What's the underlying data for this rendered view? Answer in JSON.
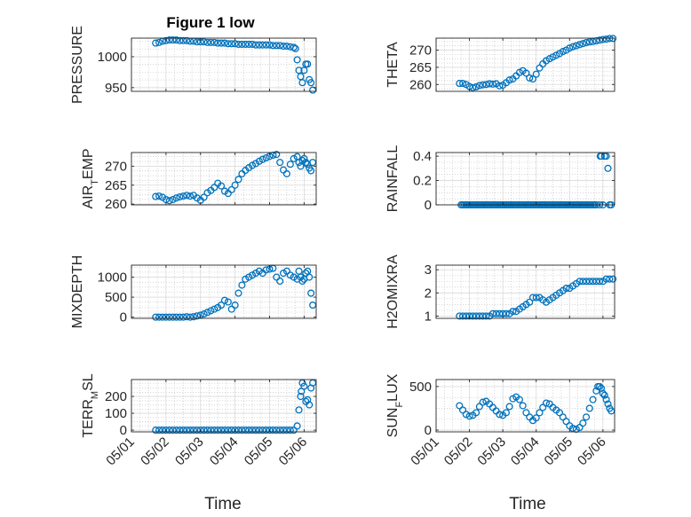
{
  "figure": {
    "title": "Figure 1 low"
  },
  "xaxis": {
    "label": "Time",
    "ticks": [
      "05/01",
      "05/02",
      "05/03",
      "05/04",
      "05/05",
      "05/06"
    ]
  },
  "colors": {
    "marker": "#0072BD",
    "axis": "#262626",
    "grid": "#bcbcbc"
  },
  "chart_data": [
    {
      "type": "scatter",
      "title": "Figure 1 low",
      "ylabel": "PRESSURE",
      "xlim": [
        0,
        5.35
      ],
      "ylim": [
        944,
        1030
      ],
      "yticks": [
        950,
        1000
      ],
      "grid": true,
      "x": [
        0.7,
        0.8,
        0.9,
        1.0,
        1.1,
        1.2,
        1.3,
        1.4,
        1.5,
        1.6,
        1.7,
        1.8,
        1.9,
        2.0,
        2.1,
        2.2,
        2.3,
        2.4,
        2.5,
        2.6,
        2.7,
        2.8,
        2.9,
        3.0,
        3.1,
        3.2,
        3.3,
        3.4,
        3.5,
        3.6,
        3.7,
        3.8,
        3.9,
        4.0,
        4.1,
        4.2,
        4.3,
        4.4,
        4.5,
        4.6,
        4.7,
        4.75,
        4.8,
        4.85,
        4.9,
        4.95,
        5.0,
        5.05,
        5.1,
        5.15,
        5.2,
        5.25
      ],
      "y": [
        1022,
        1023,
        1025,
        1026,
        1027,
        1027,
        1027,
        1026,
        1026,
        1026,
        1025,
        1025,
        1024,
        1024,
        1024,
        1023,
        1023,
        1023,
        1022,
        1022,
        1022,
        1021,
        1021,
        1021,
        1020,
        1020,
        1020,
        1020,
        1020,
        1019,
        1019,
        1019,
        1019,
        1019,
        1018,
        1018,
        1018,
        1017,
        1017,
        1016,
        1015,
        1013,
        995,
        978,
        968,
        958,
        978,
        988,
        988,
        963,
        958,
        946
      ]
    },
    {
      "type": "scatter",
      "ylabel": "THETA",
      "xlim": [
        0,
        5.35
      ],
      "ylim": [
        258,
        273.5
      ],
      "yticks": [
        260,
        265,
        270
      ],
      "grid": true,
      "x": [
        0.7,
        0.8,
        0.9,
        1.0,
        1.1,
        1.2,
        1.3,
        1.4,
        1.5,
        1.6,
        1.7,
        1.8,
        1.9,
        2.0,
        2.1,
        2.2,
        2.3,
        2.4,
        2.5,
        2.6,
        2.7,
        2.8,
        2.9,
        3.0,
        3.1,
        3.2,
        3.3,
        3.4,
        3.5,
        3.6,
        3.7,
        3.8,
        3.9,
        4.0,
        4.1,
        4.2,
        4.3,
        4.4,
        4.5,
        4.6,
        4.7,
        4.8,
        4.9,
        5.0,
        5.1,
        5.2,
        5.3
      ],
      "y": [
        260.3,
        260.3,
        260.0,
        259.4,
        259.1,
        259.3,
        259.7,
        259.9,
        260.0,
        260.2,
        260.1,
        260.2,
        259.6,
        259.8,
        260.5,
        261.3,
        261.6,
        262.5,
        263.5,
        264.0,
        263.3,
        261.9,
        261.6,
        263.0,
        264.8,
        266.0,
        266.9,
        267.5,
        268.0,
        268.5,
        269.0,
        269.6,
        270.0,
        270.6,
        271.0,
        271.3,
        271.6,
        271.9,
        272.2,
        272.4,
        272.5,
        272.7,
        272.9,
        273.1,
        273.2,
        273.4,
        273.4
      ]
    },
    {
      "type": "scatter",
      "ylabel": "AIR_TEMP",
      "xlim": [
        0,
        5.35
      ],
      "ylim": [
        259.8,
        273.6
      ],
      "yticks": [
        260,
        265,
        270
      ],
      "grid": true,
      "x": [
        0.7,
        0.8,
        0.9,
        1.0,
        1.1,
        1.2,
        1.3,
        1.4,
        1.5,
        1.6,
        1.7,
        1.8,
        1.9,
        2.0,
        2.1,
        2.2,
        2.3,
        2.4,
        2.5,
        2.6,
        2.7,
        2.8,
        2.9,
        3.0,
        3.1,
        3.2,
        3.3,
        3.4,
        3.5,
        3.6,
        3.7,
        3.8,
        3.9,
        4.0,
        4.1,
        4.2,
        4.3,
        4.4,
        4.5,
        4.6,
        4.7,
        4.8,
        4.85,
        4.9,
        4.95,
        5.0,
        5.05,
        5.1,
        5.15,
        5.2,
        5.25
      ],
      "y": [
        262.0,
        262.1,
        261.8,
        261.2,
        260.9,
        261.2,
        261.6,
        261.9,
        262.1,
        262.3,
        262.1,
        262.3,
        261.6,
        261.0,
        261.8,
        263.0,
        263.6,
        264.4,
        265.5,
        264.8,
        263.4,
        262.8,
        263.8,
        265.0,
        266.5,
        268.0,
        268.9,
        269.6,
        270.2,
        270.7,
        271.3,
        271.8,
        272.2,
        272.6,
        272.9,
        273.1,
        271.0,
        269.0,
        268.0,
        270.5,
        272.0,
        272.5,
        271.0,
        270.0,
        271.5,
        272.0,
        271.0,
        270.5,
        269.5,
        268.8,
        271.0
      ]
    },
    {
      "type": "scatter",
      "ylabel": "RAINFALL",
      "xlim": [
        0,
        5.35
      ],
      "ylim": [
        0,
        0.43
      ],
      "yticks": [
        0,
        0.2,
        0.4
      ],
      "grid": true,
      "x": [
        0.75,
        0.8,
        0.85,
        0.9,
        0.95,
        1.0,
        1.05,
        1.1,
        1.15,
        1.2,
        1.25,
        1.3,
        1.35,
        1.4,
        1.45,
        1.5,
        1.55,
        1.6,
        1.65,
        1.7,
        1.75,
        1.8,
        1.85,
        1.9,
        1.95,
        2.0,
        2.05,
        2.1,
        2.15,
        2.2,
        2.25,
        2.3,
        2.35,
        2.4,
        2.45,
        2.5,
        2.55,
        2.6,
        2.65,
        2.7,
        2.75,
        2.8,
        2.85,
        2.9,
        2.95,
        3.0,
        3.05,
        3.1,
        3.15,
        3.2,
        3.25,
        3.3,
        3.35,
        3.4,
        3.45,
        3.5,
        3.55,
        3.6,
        3.65,
        3.7,
        3.75,
        3.8,
        3.85,
        3.9,
        3.95,
        4.0,
        4.05,
        4.1,
        4.15,
        4.2,
        4.25,
        4.3,
        4.35,
        4.4,
        4.45,
        4.5,
        4.55,
        4.6,
        4.65,
        4.7,
        4.75,
        4.8,
        4.9,
        4.92,
        4.95,
        5.0,
        5.05,
        5.1,
        5.15,
        5.2,
        5.25
      ],
      "y": [
        0,
        0,
        0,
        0,
        0,
        0,
        0,
        0,
        0,
        0,
        0,
        0,
        0,
        0,
        0,
        0,
        0,
        0,
        0,
        0,
        0,
        0,
        0,
        0,
        0,
        0,
        0,
        0,
        0,
        0,
        0,
        0,
        0,
        0,
        0,
        0,
        0,
        0,
        0,
        0,
        0,
        0,
        0,
        0,
        0,
        0,
        0,
        0,
        0,
        0,
        0,
        0,
        0,
        0,
        0,
        0,
        0,
        0,
        0,
        0,
        0,
        0,
        0,
        0,
        0,
        0,
        0,
        0,
        0,
        0,
        0,
        0,
        0,
        0,
        0,
        0,
        0,
        0,
        0,
        0,
        0,
        0,
        0,
        0.4,
        0.4,
        0,
        0.4,
        0.4,
        0.3,
        0,
        0
      ]
    },
    {
      "type": "scatter",
      "ylabel": "MIXDEPTH",
      "xlim": [
        0,
        5.35
      ],
      "ylim": [
        -30,
        1300
      ],
      "yticks": [
        0,
        500,
        1000
      ],
      "grid": true,
      "x": [
        0.7,
        0.8,
        0.9,
        1.0,
        1.1,
        1.2,
        1.3,
        1.4,
        1.5,
        1.6,
        1.7,
        1.8,
        1.9,
        2.0,
        2.1,
        2.2,
        2.3,
        2.4,
        2.5,
        2.6,
        2.7,
        2.8,
        2.9,
        3.0,
        3.1,
        3.2,
        3.3,
        3.4,
        3.5,
        3.6,
        3.7,
        3.8,
        3.9,
        4.0,
        4.1,
        4.2,
        4.3,
        4.4,
        4.5,
        4.6,
        4.7,
        4.8,
        4.85,
        4.9,
        4.95,
        5.0,
        5.05,
        5.1,
        5.15,
        5.2,
        5.25
      ],
      "y": [
        0,
        0,
        0,
        0,
        0,
        0,
        0,
        0,
        0,
        10,
        0,
        10,
        30,
        50,
        80,
        120,
        160,
        200,
        240,
        300,
        420,
        380,
        200,
        300,
        600,
        800,
        950,
        1000,
        1050,
        1100,
        1150,
        1100,
        1180,
        1200,
        1220,
        1000,
        900,
        1100,
        1150,
        1050,
        1000,
        950,
        1150,
        1000,
        900,
        950,
        1100,
        1150,
        1000,
        600,
        300
      ]
    },
    {
      "type": "scatter",
      "ylabel": "H2OMIXRA",
      "xlim": [
        0,
        5.35
      ],
      "ylim": [
        0.9,
        3.2
      ],
      "yticks": [
        1,
        2,
        3
      ],
      "grid": true,
      "x": [
        0.7,
        0.8,
        0.9,
        1.0,
        1.1,
        1.2,
        1.3,
        1.4,
        1.5,
        1.6,
        1.7,
        1.8,
        1.9,
        2.0,
        2.1,
        2.2,
        2.3,
        2.4,
        2.5,
        2.6,
        2.7,
        2.8,
        2.9,
        3.0,
        3.1,
        3.2,
        3.3,
        3.4,
        3.5,
        3.6,
        3.7,
        3.8,
        3.9,
        4.0,
        4.1,
        4.2,
        4.3,
        4.4,
        4.5,
        4.6,
        4.7,
        4.8,
        4.9,
        5.0,
        5.1,
        5.2,
        5.3
      ],
      "y": [
        1.0,
        1.0,
        1.0,
        1.0,
        1.0,
        1.0,
        1.0,
        1.0,
        1.0,
        1.0,
        1.1,
        1.1,
        1.1,
        1.1,
        1.1,
        1.1,
        1.2,
        1.2,
        1.3,
        1.4,
        1.5,
        1.6,
        1.8,
        1.8,
        1.8,
        1.7,
        1.6,
        1.7,
        1.8,
        1.9,
        2.0,
        2.1,
        2.2,
        2.2,
        2.3,
        2.4,
        2.5,
        2.5,
        2.5,
        2.5,
        2.5,
        2.5,
        2.5,
        2.5,
        2.6,
        2.6,
        2.6
      ]
    },
    {
      "type": "scatter",
      "ylabel": "TERR_MSL",
      "xlim": [
        0,
        5.35
      ],
      "ylim": [
        -10,
        300
      ],
      "yticks": [
        0,
        100,
        200
      ],
      "grid": true,
      "x": [
        0.7,
        0.8,
        0.9,
        1.0,
        1.1,
        1.2,
        1.3,
        1.4,
        1.5,
        1.6,
        1.7,
        1.8,
        1.9,
        2.0,
        2.1,
        2.2,
        2.3,
        2.4,
        2.5,
        2.6,
        2.7,
        2.8,
        2.9,
        3.0,
        3.1,
        3.2,
        3.3,
        3.4,
        3.5,
        3.6,
        3.7,
        3.8,
        3.9,
        4.0,
        4.1,
        4.2,
        4.3,
        4.4,
        4.5,
        4.6,
        4.7,
        4.8,
        4.85,
        4.9,
        4.92,
        4.95,
        5.0,
        5.05,
        5.1,
        5.15,
        5.2,
        5.25
      ],
      "y": [
        0,
        0,
        0,
        0,
        0,
        0,
        0,
        0,
        0,
        0,
        0,
        0,
        0,
        0,
        0,
        0,
        0,
        0,
        0,
        0,
        0,
        0,
        0,
        0,
        0,
        0,
        0,
        0,
        0,
        0,
        0,
        0,
        0,
        0,
        0,
        0,
        0,
        0,
        0,
        0,
        0,
        25,
        120,
        200,
        230,
        280,
        260,
        170,
        180,
        150,
        250,
        280
      ]
    },
    {
      "type": "scatter",
      "ylabel": "SUN_FLUX",
      "xlim": [
        0,
        5.35
      ],
      "ylim": [
        -20,
        580
      ],
      "yticks": [
        0,
        500
      ],
      "grid": true,
      "x": [
        0.7,
        0.8,
        0.9,
        1.0,
        1.1,
        1.2,
        1.3,
        1.4,
        1.5,
        1.6,
        1.7,
        1.8,
        1.9,
        2.0,
        2.1,
        2.2,
        2.3,
        2.4,
        2.5,
        2.6,
        2.7,
        2.8,
        2.9,
        3.0,
        3.1,
        3.2,
        3.3,
        3.4,
        3.5,
        3.6,
        3.7,
        3.8,
        3.9,
        4.0,
        4.1,
        4.2,
        4.3,
        4.4,
        4.5,
        4.6,
        4.7,
        4.8,
        4.85,
        4.9,
        4.95,
        5.0,
        5.05,
        5.1,
        5.15,
        5.2,
        5.25
      ],
      "y": [
        280,
        230,
        180,
        160,
        170,
        200,
        270,
        320,
        330,
        300,
        260,
        220,
        180,
        170,
        200,
        270,
        360,
        380,
        350,
        280,
        200,
        150,
        110,
        140,
        200,
        260,
        310,
        300,
        260,
        230,
        200,
        150,
        100,
        50,
        20,
        10,
        30,
        80,
        150,
        250,
        350,
        450,
        500,
        500,
        480,
        420,
        400,
        350,
        300,
        250,
        220
      ]
    }
  ]
}
